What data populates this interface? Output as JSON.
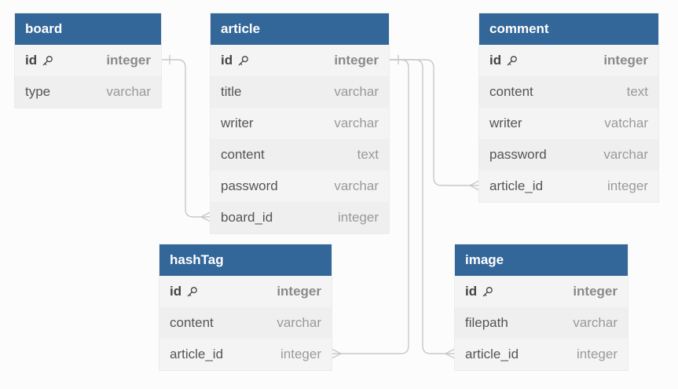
{
  "diagram": {
    "tables": [
      {
        "id": "board",
        "title": "board",
        "fields": [
          {
            "name": "id",
            "type": "integer",
            "pk": true
          },
          {
            "name": "type",
            "type": "varchar"
          }
        ]
      },
      {
        "id": "article",
        "title": "article",
        "fields": [
          {
            "name": "id",
            "type": "integer",
            "pk": true
          },
          {
            "name": "title",
            "type": "varchar"
          },
          {
            "name": "writer",
            "type": "varchar"
          },
          {
            "name": "content",
            "type": "text"
          },
          {
            "name": "password",
            "type": "varchar"
          },
          {
            "name": "board_id",
            "type": "integer"
          }
        ]
      },
      {
        "id": "comment",
        "title": "comment",
        "fields": [
          {
            "name": "id",
            "type": "integer",
            "pk": true
          },
          {
            "name": "content",
            "type": "text"
          },
          {
            "name": "writer",
            "type": "vatchar"
          },
          {
            "name": "password",
            "type": "varchar"
          },
          {
            "name": "article_id",
            "type": "integer"
          }
        ]
      },
      {
        "id": "hashtag",
        "title": "hashTag",
        "fields": [
          {
            "name": "id",
            "type": "integer",
            "pk": true
          },
          {
            "name": "content",
            "type": "varchar"
          },
          {
            "name": "article_id",
            "type": "integer"
          }
        ]
      },
      {
        "id": "image",
        "title": "image",
        "fields": [
          {
            "name": "id",
            "type": "integer",
            "pk": true
          },
          {
            "name": "filepath",
            "type": "varchar"
          },
          {
            "name": "article_id",
            "type": "integer"
          }
        ]
      }
    ],
    "relationships": [
      {
        "from": "board.id",
        "to": "article.board_id",
        "cardinality": "one-to-many"
      },
      {
        "from": "article.id",
        "to": "comment.article_id",
        "cardinality": "one-to-many"
      },
      {
        "from": "article.id",
        "to": "hashTag.article_id",
        "cardinality": "one-to-many"
      },
      {
        "from": "article.id",
        "to": "image.article_id",
        "cardinality": "one-to-many"
      }
    ],
    "colors": {
      "header": "#336699",
      "header_text": "#ffffff",
      "line": "#c8c8c8"
    },
    "icons": {
      "primary_key": "key-icon"
    }
  }
}
